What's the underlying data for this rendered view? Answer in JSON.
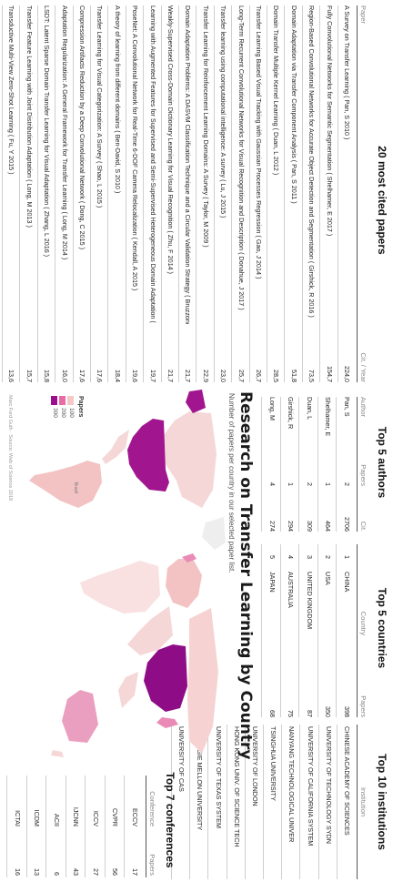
{
  "colors": {
    "low": "#f6c7c7",
    "mid": "#e86aa7",
    "high": "#9b0f8e",
    "base": "#dcdcdc",
    "accent": "#a0007f"
  },
  "papers": {
    "title": "20 most cited papers",
    "col_paper": "Paper",
    "col_cit": "Cit. / Year",
    "rows": [
      {
        "paper": "A Survey on Transfer Learning ( Pan, S 2010 )",
        "cit": "224,0"
      },
      {
        "paper": "Fully Convolutional Networks for Semantic Segmentation ( Shelhamer, E 2017 )",
        "cit": "154,7"
      },
      {
        "paper": "Region-Based Convolutional Networks for Accurate Object Detection and Segmentation ( Girshick, R 2016 )",
        "cit": "73,5"
      },
      {
        "paper": "Domain Adaptation via Transfer Component Analysis ( Pan, S 2011 )",
        "cit": "51,8"
      },
      {
        "paper": "Domain Transfer Multiple Kernel Learning ( Duan, L 2012 )",
        "cit": "28,5"
      },
      {
        "paper": "Transfer Learning Based Visual Tracking with Gaussian Processes Regression ( Gao, J 2014 )",
        "cit": "26,7"
      },
      {
        "paper": "Long-Term Recurrent Convolutional Networks for Visual Recognition and Description ( Donahue, J 2017 )",
        "cit": "25,7"
      },
      {
        "paper": "Transfer learning using computational intelligence: A survey ( Lu, J 2015 )",
        "cit": "23,0"
      },
      {
        "paper": "Transfer Learning for Reinforcement Learning Domains: A Survey ( Taylor, M 2009 )",
        "cit": "22,9"
      },
      {
        "paper": "Domain Adaptation Problems: A DASVM Classification Technique and a Circular Validation Strategy ( Bruzzone, L 2010 )",
        "cit": "21,7"
      },
      {
        "paper": "Weakly-Supervised Cross-Domain Dictionary Learning for Visual Recognition ( Zhu, F 2014 )",
        "cit": "21,7"
      },
      {
        "paper": "Learning with Augmented Features for Supervised and Semi-Supervised Heterogeneous Domain Adaptation ( Li, W 2014 )",
        "cit": "19,7"
      },
      {
        "paper": "PoseNet: A Convolutional Network for Real-Time 6-DOF Camera Relocalization ( Kendall, A 2015 )",
        "cit": "19,6"
      },
      {
        "paper": "A theory of learning from different domains ( Ben-David, S 2010 )",
        "cit": "18,4"
      },
      {
        "paper": "Transfer Learning for Visual Categorization: A Survey ( Shao, L 2015 )",
        "cit": "17,6"
      },
      {
        "paper": "Compression Artifacts Reduction by a Deep Convolutional Network ( Dong, C 2015 )",
        "cit": "17,6"
      },
      {
        "paper": "Adaptation Regularization: A General Framework for Transfer Learning ( Long, M 2014 )",
        "cit": "16,0"
      },
      {
        "paper": "LSDT: Latent Sparse Domain Transfer Learning for Visual Adaptation ( Zhang, L 2016 )",
        "cit": "15,8"
      },
      {
        "paper": "Transfer Feature Learning with Joint Distribution Adaptation ( Long, M 2013 )",
        "cit": "15,7"
      },
      {
        "paper": "Transductive Multi-View Zero-Shot Learning ( Fu, Y 2015 )",
        "cit": "13,6"
      }
    ]
  },
  "authors": {
    "title": "Top 5 authors",
    "col_author": "Author",
    "col_papers": "Papers",
    "col_cit": "Cit.",
    "rows": [
      {
        "author": "Pan, S",
        "papers": "2",
        "cit": "2706"
      },
      {
        "author": "Shelhamer, E",
        "papers": "1",
        "cit": "464"
      },
      {
        "author": "Duan, L",
        "papers": "2",
        "cit": "309"
      },
      {
        "author": "Girshick, R",
        "papers": "1",
        "cit": "294"
      },
      {
        "author": "Long, M",
        "papers": "4",
        "cit": "274"
      }
    ]
  },
  "countries": {
    "title": "Top 5 countries",
    "col_country": "Country",
    "col_papers": "Papers",
    "rows": [
      {
        "rank": "1",
        "country": "CHINA",
        "papers": "398"
      },
      {
        "rank": "2",
        "country": "USA",
        "papers": "350"
      },
      {
        "rank": "3",
        "country": "UNITED KINGDOM",
        "papers": "87"
      },
      {
        "rank": "4",
        "country": "AUSTRALIA",
        "papers": "75"
      },
      {
        "rank": "5",
        "country": "JAPAN",
        "papers": "68"
      }
    ]
  },
  "institutions": {
    "title": "Top 10 institutions",
    "col_institution": "Institution",
    "rows": [
      "CHINESE ACADEMY OF SCIENCES",
      "UNIVERSITY OF TECHNOLOGY SYDN",
      "UNIVERSITY OF CALIFORNIA SYSTEM",
      "NANYANG TECHNOLOGICAL UNIVER",
      "TSINGHUA UNIVERSITY",
      "UNIVERSITY OF LONDON",
      "HONG KONG UNIV. OF SCIENCE TECH",
      "UNIVERSITY OF TEXAS SYSTEM",
      "CARNEGIE MELLON UNIVERSITY",
      "UNIVERSITY OF CAS"
    ]
  },
  "conferences": {
    "title": "Top 7 conferences",
    "col_conference": "Conference",
    "col_papers": "Papers",
    "rows": [
      {
        "conference": "ECCV",
        "papers": "17"
      },
      {
        "conference": "CVPR",
        "papers": "56"
      },
      {
        "conference": "ICCV",
        "papers": "27"
      },
      {
        "conference": "IJCNN",
        "papers": "43"
      },
      {
        "conference": "ACII",
        "papers": "6"
      },
      {
        "conference": "ICDM",
        "papers": "13"
      },
      {
        "conference": "ICTAI",
        "papers": "16"
      }
    ]
  },
  "map": {
    "title": "Research on Transfer Learning by Country",
    "subtitle": "Number of papers per country in our selected paper list.",
    "legend_title": "Papers",
    "legend_values": [
      "100",
      "200",
      "300"
    ],
    "label_brazil": "Brazil",
    "credit": "Marc Ford Guth · Source: Web of Science 2018"
  },
  "chart_data": [
    {
      "type": "table",
      "title": "20 most cited papers",
      "columns": [
        "Paper",
        "Cit. / Year"
      ],
      "rows": [
        [
          "A Survey on Transfer Learning ( Pan, S 2010 )",
          224.0
        ],
        [
          "Fully Convolutional Networks for Semantic Segmentation ( Shelhamer, E 2017 )",
          154.7
        ],
        [
          "Region-Based Convolutional Networks for Accurate Object Detection and Segmentation ( Girshick, R 2016 )",
          73.5
        ],
        [
          "Domain Adaptation via Transfer Component Analysis ( Pan, S 2011 )",
          51.8
        ],
        [
          "Domain Transfer Multiple Kernel Learning ( Duan, L 2012 )",
          28.5
        ],
        [
          "Transfer Learning Based Visual Tracking with Gaussian Processes Regression ( Gao, J 2014 )",
          26.7
        ],
        [
          "Long-Term Recurrent Convolutional Networks for Visual Recognition and Description ( Donahue, J 2017 )",
          25.7
        ],
        [
          "Transfer learning using computational intelligence: A survey ( Lu, J 2015 )",
          23.0
        ],
        [
          "Transfer Learning for Reinforcement Learning Domains: A Survey ( Taylor, M 2009 )",
          22.9
        ],
        [
          "Domain Adaptation Problems: A DASVM Classification Technique and a Circular Validation Strategy ( Bruzzone, L 2010 )",
          21.7
        ],
        [
          "Weakly-Supervised Cross-Domain Dictionary Learning for Visual Recognition ( Zhu, F 2014 )",
          21.7
        ],
        [
          "Learning with Augmented Features for Supervised and Semi-Supervised Heterogeneous Domain Adaptation ( Li, W 2014 )",
          19.7
        ],
        [
          "PoseNet: A Convolutional Network for Real-Time 6-DOF Camera Relocalization ( Kendall, A 2015 )",
          19.6
        ],
        [
          "A theory of learning from different domains ( Ben-David, S 2010 )",
          18.4
        ],
        [
          "Transfer Learning for Visual Categorization: A Survey ( Shao, L 2015 )",
          17.6
        ],
        [
          "Compression Artifacts Reduction by a Deep Convolutional Network ( Dong, C 2015 )",
          17.6
        ],
        [
          "Adaptation Regularization: A General Framework for Transfer Learning ( Long, M 2014 )",
          16.0
        ],
        [
          "LSDT: Latent Sparse Domain Transfer Learning for Visual Adaptation ( Zhang, L 2016 )",
          15.8
        ],
        [
          "Transfer Feature Learning with Joint Distribution Adaptation ( Long, M 2013 )",
          15.7
        ],
        [
          "Transductive Multi-View Zero-Shot Learning ( Fu, Y 2015 )",
          13.6
        ]
      ]
    },
    {
      "type": "table",
      "title": "Top 5 authors",
      "columns": [
        "Author",
        "Papers",
        "Cit."
      ],
      "rows": [
        [
          "Pan, S",
          2,
          2706
        ],
        [
          "Shelhamer, E",
          1,
          464
        ],
        [
          "Duan, L",
          2,
          309
        ],
        [
          "Girshick, R",
          1,
          294
        ],
        [
          "Long, M",
          4,
          274
        ]
      ]
    },
    {
      "type": "table",
      "title": "Top 5 countries",
      "columns": [
        "Country",
        "Papers"
      ],
      "rows": [
        [
          "CHINA",
          398
        ],
        [
          "USA",
          350
        ],
        [
          "UNITED KINGDOM",
          87
        ],
        [
          "AUSTRALIA",
          75
        ],
        [
          "JAPAN",
          68
        ]
      ]
    },
    {
      "type": "table",
      "title": "Top 10 institutions",
      "columns": [
        "Institution"
      ],
      "rows": [
        [
          "CHINESE ACADEMY OF SCIENCES"
        ],
        [
          "UNIVERSITY OF TECHNOLOGY SYDN"
        ],
        [
          "UNIVERSITY OF CALIFORNIA SYSTEM"
        ],
        [
          "NANYANG TECHNOLOGICAL UNIVER"
        ],
        [
          "TSINGHUA UNIVERSITY"
        ],
        [
          "UNIVERSITY OF LONDON"
        ],
        [
          "HONG KONG UNIV. OF SCIENCE TECH"
        ],
        [
          "UNIVERSITY OF TEXAS SYSTEM"
        ],
        [
          "CARNEGIE MELLON UNIVERSITY"
        ],
        [
          "UNIVERSITY OF CAS"
        ]
      ]
    },
    {
      "type": "table",
      "title": "Top 7 conferences",
      "columns": [
        "Conference",
        "Papers"
      ],
      "rows": [
        [
          "ECCV",
          17
        ],
        [
          "CVPR",
          56
        ],
        [
          "ICCV",
          27
        ],
        [
          "IJCNN",
          43
        ],
        [
          "ACII",
          6
        ],
        [
          "ICDM",
          13
        ],
        [
          "ICTAI",
          16
        ]
      ]
    },
    {
      "type": "heatmap",
      "title": "Research on Transfer Learning by Country",
      "subtitle": "Number of papers per country in our selected paper list.",
      "legend": "Papers",
      "legend_values": [
        100,
        200,
        300
      ],
      "regions": [
        "CHINA",
        "USA",
        "UNITED KINGDOM",
        "AUSTRALIA",
        "JAPAN"
      ],
      "values": [
        398,
        350,
        87,
        75,
        68
      ]
    }
  ]
}
